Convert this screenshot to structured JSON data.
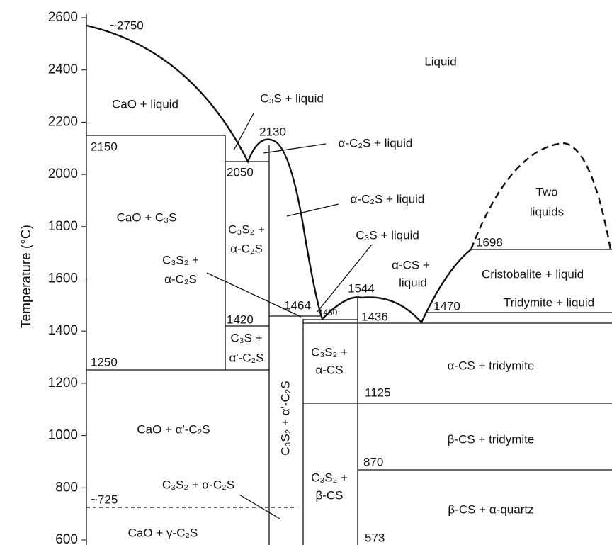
{
  "axis": {
    "label": "Temperature (°C)",
    "ticks": [
      "2600",
      "2400",
      "2200",
      "2000",
      "1800",
      "1600",
      "1400",
      "1200",
      "1000",
      "800",
      "600"
    ]
  },
  "labels": [
    "~2750",
    "Liquid",
    "CaO + liquid",
    "C₃S + liquid",
    "2130",
    "α-C₂S + liquid",
    "2150",
    "2050",
    "α-C₂S + liquid",
    "Two",
    "liquids",
    "CaO + C₃S",
    "C₃S₂ +",
    "α-C₂S",
    "C₃S + liquid",
    "1698",
    "C₃S₂ +",
    "α-C₂S",
    "α-CS +",
    "liquid",
    "Cristobalite + liquid",
    "1544",
    "1464",
    "1470",
    "Tridymite + liquid",
    "1420",
    "1460",
    "1436",
    "C₃S +",
    "α'-C₂S",
    "C₃S₂ +",
    "α-CS",
    "1250",
    "α-CS + tridymite",
    "1125",
    "CaO + α'-C₂S",
    "β-CS + tridymite",
    "870",
    "C₃S₂ +",
    "β-CS",
    "C₃S₂ + α-C₂S",
    "~725",
    "β-CS + α-quartz",
    "CaO + γ-C₂S",
    "573",
    "C₃S₂ + α'-C₂S"
  ]
}
